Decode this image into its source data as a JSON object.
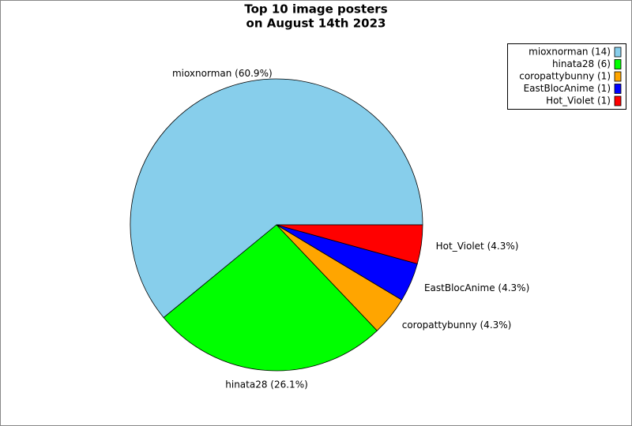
{
  "chart_data": {
    "type": "pie",
    "title": [
      "Top 10 image posters",
      "on August 14th 2023"
    ],
    "values": [
      60.9,
      26.1,
      4.3,
      4.3,
      4.3
    ],
    "value_labels": [
      "mioxnorman (60.9%)",
      "hinata28 (26.1%)",
      "coropattybunny (4.3%)",
      "EastBlocAnime (4.3%)",
      "Hot_Violet (4.3%)"
    ],
    "labels": [
      "mioxnorman (14)",
      "hinata28 (6)",
      "coropattybunny (1)",
      "EastBlocAnime (1)",
      "Hot_Violet (1)"
    ],
    "colors": [
      "#87ceeb",
      "#00ff00",
      "#ffa500",
      "#0000ff",
      "#ff0000"
    ],
    "legend": "upper right"
  }
}
